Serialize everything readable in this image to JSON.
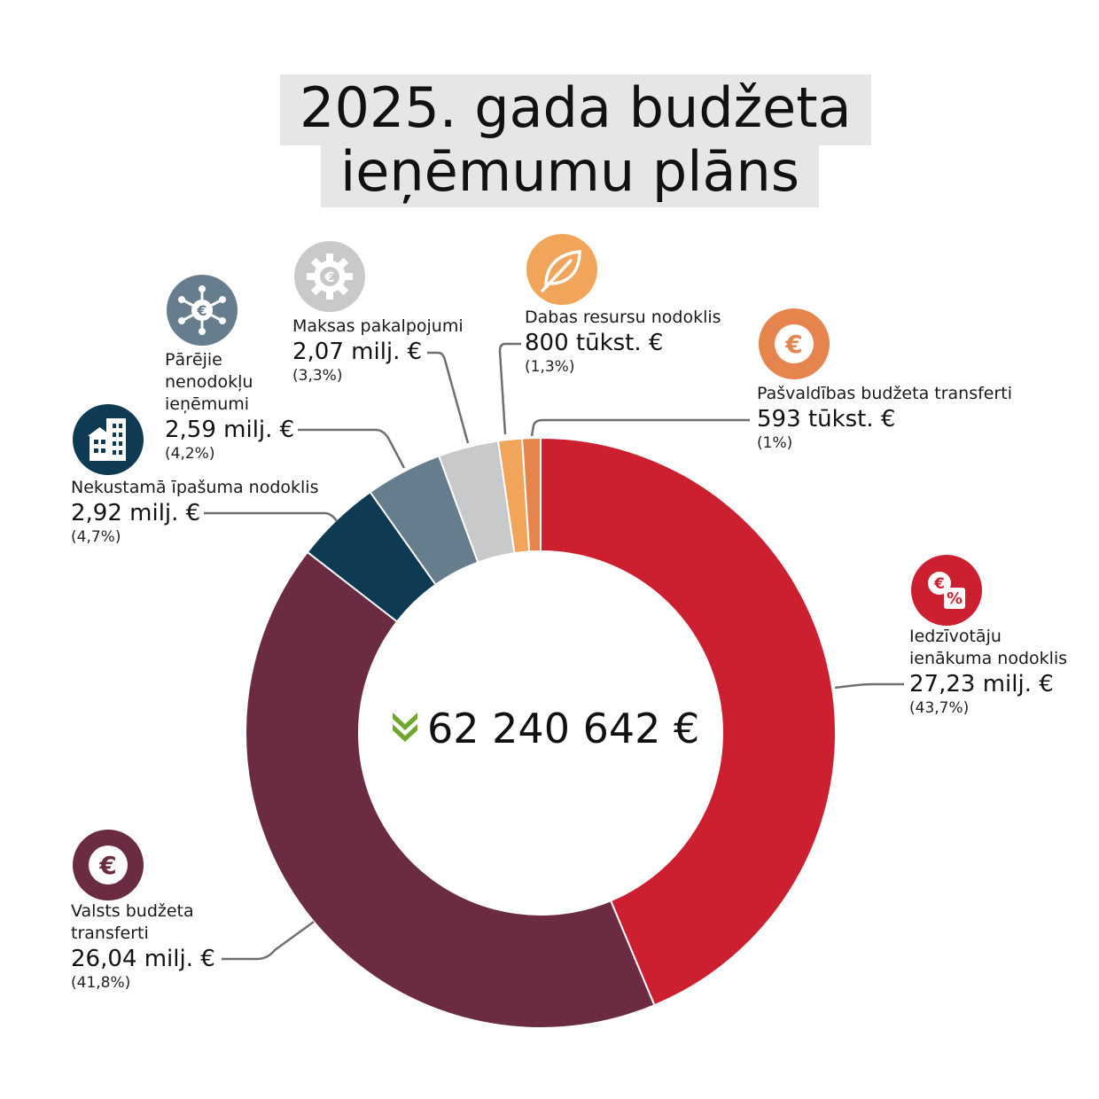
{
  "title": {
    "line1": "2025. gada budžeta",
    "line2": "ieņēmumu plāns"
  },
  "total": "62 240 642 €",
  "chart_data": {
    "type": "pie",
    "donut": true,
    "title": "2025. gada budžeta ieņēmumu plāns",
    "total": "62 240 642 €",
    "slices": [
      {
        "key": "iin",
        "name": "Iedzīvotāju ienākuma nodoklis",
        "name_lines": [
          "Iedzīvotāju",
          "ienākuma nodoklis"
        ],
        "value_text": "27,23 milj. €",
        "pct_text": "(43,7%)",
        "pct": 43.7,
        "color": "#cc1f30"
      },
      {
        "key": "valsts",
        "name": "Valsts budžeta transferti",
        "name_lines": [
          "Valsts budžeta",
          "transferti"
        ],
        "value_text": "26,04 milj. €",
        "pct_text": "(41,8%)",
        "pct": 41.8,
        "color": "#6b2b42"
      },
      {
        "key": "nin",
        "name": "Nekustamā īpašuma nodoklis",
        "name_lines": [
          "Nekustamā īpašuma nodoklis"
        ],
        "value_text": "2,92 milj. €",
        "pct_text": "(4,7%)",
        "pct": 4.7,
        "color": "#0e3a53"
      },
      {
        "key": "parejie",
        "name": "Pārējie nenodokļu ieņēmumi",
        "name_lines": [
          "Pārējie",
          "nenodokļu",
          "ieņēmumi"
        ],
        "value_text": "2,59 milj. €",
        "pct_text": "(4,2%)",
        "pct": 4.2,
        "color": "#657d8d"
      },
      {
        "key": "maksas",
        "name": "Maksas pakalpojumi",
        "name_lines": [
          "Maksas pakalpojumi"
        ],
        "value_text": "2,07 milj. €",
        "pct_text": "(3,3%)",
        "pct": 3.3,
        "color": "#c8c9cb"
      },
      {
        "key": "dabas",
        "name": "Dabas resursu nodoklis",
        "name_lines": [
          "Dabas resursu nodoklis"
        ],
        "value_text": "800 tūkst. €",
        "pct_text": "(1,3%)",
        "pct": 1.3,
        "color": "#f0a55a"
      },
      {
        "key": "pasv",
        "name": "Pašvaldības budžeta transferti",
        "name_lines": [
          "Pašvaldības budžeta transferti"
        ],
        "value_text": "593 tūkst. €",
        "pct_text": "(1%)",
        "pct": 1.0,
        "color": "#e5844d"
      }
    ]
  },
  "icons": {
    "iin": {
      "name": "euro-percent-icon",
      "color": "#cc1f30"
    },
    "valsts": {
      "name": "euro-icon",
      "color": "#6b2b42"
    },
    "nin": {
      "name": "buildings-icon",
      "color": "#0e3a53"
    },
    "parejie": {
      "name": "euro-network-icon",
      "color": "#657d8d"
    },
    "maksas": {
      "name": "euro-gear-icon",
      "color": "#c8c9cb"
    },
    "dabas": {
      "name": "leaf-icon",
      "color": "#f0a55a"
    },
    "pasv": {
      "name": "euro-coin-icon",
      "color": "#e5844d"
    },
    "total": {
      "name": "double-chevron-down-icon",
      "color": "#6ea72b"
    }
  }
}
